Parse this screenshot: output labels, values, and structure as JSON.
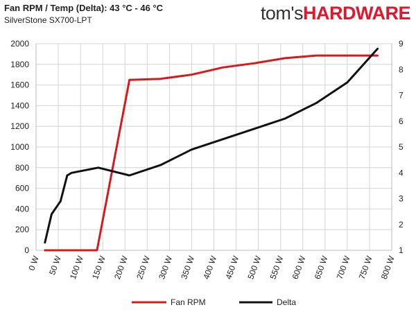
{
  "header": {
    "title": "Fan RPM / Temp (Delta): 43 °C - 46 °C",
    "subtitle": "SilverStone SX700-LPT",
    "brand_part1": "tom's",
    "brand_part2": "HARDWARE"
  },
  "colors": {
    "fan": "#d7191c",
    "delta": "#111111",
    "brand_accent": "#e0182d"
  },
  "chart_data": {
    "type": "line",
    "title": "Fan RPM / Temp (Delta): 43 °C - 46 °C",
    "subtitle": "SilverStone SX700-LPT",
    "xlabel": "",
    "ylabel": "",
    "xlim": [
      0,
      800
    ],
    "ylim": [
      0,
      2000
    ],
    "y2lim": [
      1,
      9
    ],
    "x_ticks": [
      "0 W",
      "50 W",
      "100 W",
      "150 W",
      "200 W",
      "250 W",
      "300 W",
      "350 W",
      "400 W",
      "450 W",
      "500 W",
      "550 W",
      "600 W",
      "650 W",
      "700 W",
      "750 W",
      "800 W"
    ],
    "y_ticks": [
      "0",
      "200",
      "400",
      "600",
      "800",
      "1000",
      "1200",
      "1400",
      "1600",
      "1800",
      "2000"
    ],
    "y2_ticks": [
      "1",
      "2",
      "3",
      "4",
      "5",
      "6",
      "7",
      "8",
      "9"
    ],
    "grid": true,
    "legend_position": "bottom",
    "series": [
      {
        "name": "Fan RPM",
        "axis": "left",
        "x": [
          20,
          70,
          137,
          210,
          280,
          350,
          420,
          490,
          560,
          630,
          700,
          768
        ],
        "y": [
          0,
          0,
          0,
          1650,
          1660,
          1700,
          1770,
          1810,
          1860,
          1885,
          1885,
          1885
        ]
      },
      {
        "name": "Delta",
        "axis": "right",
        "x": [
          20,
          35,
          55,
          70,
          80,
          140,
          210,
          280,
          350,
          420,
          490,
          560,
          630,
          700,
          768
        ],
        "y": [
          1.3,
          2.4,
          2.9,
          3.9,
          4.0,
          4.2,
          3.9,
          4.3,
          4.9,
          5.3,
          5.7,
          6.1,
          6.7,
          7.5,
          8.8
        ]
      }
    ]
  }
}
